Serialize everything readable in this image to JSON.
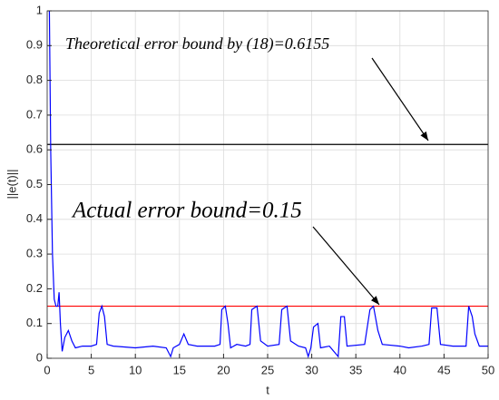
{
  "chart_data": {
    "type": "line",
    "xlabel": "t",
    "ylabel": "||e(t)||",
    "xlim": [
      0,
      50
    ],
    "xticks": [
      0,
      5,
      10,
      15,
      20,
      25,
      30,
      35,
      40,
      45,
      50
    ],
    "ylim": [
      0,
      1
    ],
    "yticks": [
      0,
      0.1,
      0.2,
      0.3,
      0.4,
      0.5,
      0.6,
      0.7,
      0.8,
      0.9,
      1
    ],
    "grid": true,
    "series": [
      {
        "color": "#0000ff",
        "x": [
          0.25,
          0.4,
          0.6,
          0.8,
          1.0,
          1.2,
          1.35,
          1.5,
          1.7,
          2.0,
          2.4,
          2.8,
          3.2,
          4,
          5,
          5.6,
          5.9,
          6.2,
          6.5,
          6.8,
          7.5,
          10,
          12,
          13.5,
          14,
          14.3,
          15,
          15.5,
          16,
          17,
          19,
          19.6,
          19.8,
          20.2,
          20.5,
          20.8,
          21.5,
          22.5,
          23,
          23.2,
          23.8,
          24.2,
          25,
          26.3,
          26.6,
          27.2,
          27.6,
          28.5,
          29.3,
          29.6,
          29.9,
          30.2,
          30.7,
          31,
          32,
          33,
          33.3,
          33.7,
          34,
          36,
          36.6,
          37,
          37.5,
          38,
          40,
          41,
          42.5,
          43.3,
          43.6,
          44.2,
          44.6,
          46,
          47.5,
          47.8,
          48.2,
          48.5,
          49,
          50
        ],
        "values": [
          1.0,
          0.6,
          0.3,
          0.17,
          0.15,
          0.15,
          0.19,
          0.1,
          0.02,
          0.06,
          0.08,
          0.05,
          0.03,
          0.035,
          0.035,
          0.04,
          0.13,
          0.15,
          0.12,
          0.04,
          0.035,
          0.03,
          0.035,
          0.03,
          0.005,
          0.03,
          0.04,
          0.07,
          0.04,
          0.035,
          0.035,
          0.04,
          0.14,
          0.15,
          0.1,
          0.03,
          0.04,
          0.035,
          0.04,
          0.14,
          0.15,
          0.05,
          0.035,
          0.04,
          0.14,
          0.15,
          0.05,
          0.035,
          0.03,
          0.005,
          0.03,
          0.09,
          0.1,
          0.03,
          0.035,
          0.005,
          0.12,
          0.12,
          0.035,
          0.04,
          0.14,
          0.15,
          0.08,
          0.04,
          0.035,
          0.03,
          0.035,
          0.04,
          0.145,
          0.145,
          0.04,
          0.035,
          0.035,
          0.15,
          0.12,
          0.07,
          0.035,
          0.035
        ]
      }
    ],
    "hlines": [
      {
        "value": 0.6155,
        "color": "#000000"
      },
      {
        "value": 0.15,
        "color": "#ff0000"
      }
    ],
    "annotations": [
      "Theoretical error bound by (18)=0.6155",
      "Actual error bound=0.15"
    ]
  }
}
